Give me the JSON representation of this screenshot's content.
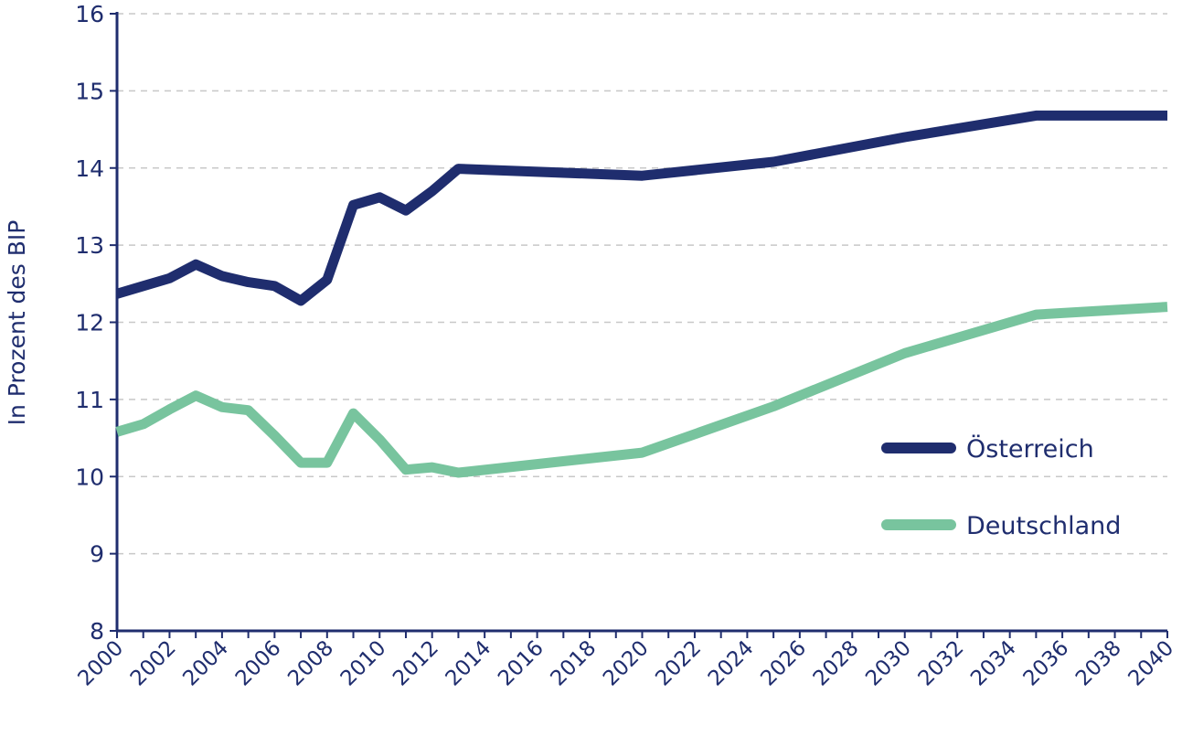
{
  "chart_data": {
    "type": "line",
    "title": "",
    "xlabel": "",
    "ylabel": "In Prozent des BIP",
    "xlim": [
      2000,
      2040
    ],
    "ylim": [
      8,
      16
    ],
    "y_ticks": [
      8,
      9,
      10,
      11,
      12,
      13,
      14,
      15,
      16
    ],
    "x_ticks": [
      2000,
      2002,
      2004,
      2006,
      2008,
      2010,
      2012,
      2014,
      2016,
      2018,
      2020,
      2022,
      2024,
      2026,
      2028,
      2030,
      2032,
      2034,
      2036,
      2038,
      2040
    ],
    "grid": "horizontal dashed",
    "legend_position": "right",
    "series": [
      {
        "name": "Österreich",
        "color": "#1f2d6e",
        "x": [
          2000,
          2001,
          2002,
          2003,
          2004,
          2005,
          2006,
          2007,
          2008,
          2009,
          2010,
          2011,
          2012,
          2013,
          2020,
          2025,
          2030,
          2035,
          2040
        ],
        "y": [
          12.37,
          12.47,
          12.57,
          12.75,
          12.6,
          12.52,
          12.47,
          12.28,
          12.55,
          13.52,
          13.62,
          13.45,
          13.7,
          13.99,
          13.9,
          14.08,
          14.4,
          14.68,
          14.68
        ]
      },
      {
        "name": "Deutschland",
        "color": "#78c49e",
        "x": [
          2000,
          2001,
          2002,
          2003,
          2004,
          2005,
          2006,
          2007,
          2008,
          2009,
          2010,
          2011,
          2012,
          2013,
          2020,
          2025,
          2030,
          2035,
          2040
        ],
        "y": [
          10.58,
          10.68,
          10.87,
          11.05,
          10.9,
          10.86,
          10.53,
          10.18,
          10.18,
          10.82,
          10.48,
          10.09,
          10.12,
          10.05,
          10.31,
          10.91,
          11.6,
          12.1,
          12.2
        ]
      }
    ]
  }
}
